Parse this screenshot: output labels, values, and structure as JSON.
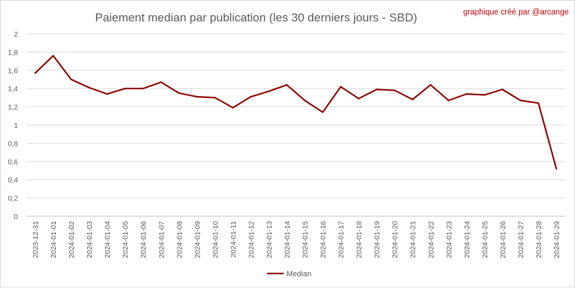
{
  "chart_data": {
    "type": "line",
    "title": "Paiement median par publication (les 30 derniers jours - SBD)",
    "credit": "graphique créé par @arcange",
    "xlabel": "",
    "ylabel": "",
    "ylim": [
      0,
      2
    ],
    "y_ticks": [
      "0",
      "0,2",
      "0,4",
      "0,6",
      "0,8",
      "1",
      "1,2",
      "1,4",
      "1,6",
      "1,8",
      "2"
    ],
    "grid": true,
    "legend_position": "bottom",
    "colors": {
      "series": "#8b0000",
      "grid": "#d9d9d9",
      "axis": "#bfbfbf"
    },
    "categories": [
      "2023-12-31",
      "2024-01-01",
      "2024-01-02",
      "2024-01-03",
      "2024-01-04",
      "2024-01-05",
      "2024-01-06",
      "2024-01-07",
      "2024-01-08",
      "2024-01-09",
      "2024-01-10",
      "2024-01-11",
      "2024-01-12",
      "2024-01-13",
      "2024-01-14",
      "2024-01-15",
      "2024-01-16",
      "2024-01-17",
      "2024-01-18",
      "2024-01-19",
      "2024-01-20",
      "2024-01-21",
      "2024-01-22",
      "2024-01-23",
      "2024-01-24",
      "2024-01-25",
      "2024-01-26",
      "2024-01-27",
      "2024-01-28",
      "2024-01-29"
    ],
    "series": [
      {
        "name": "Median",
        "values": [
          1.57,
          1.76,
          1.5,
          1.41,
          1.34,
          1.4,
          1.4,
          1.47,
          1.35,
          1.31,
          1.3,
          1.19,
          1.31,
          1.37,
          1.44,
          1.27,
          1.14,
          1.42,
          1.29,
          1.39,
          1.38,
          1.28,
          1.44,
          1.27,
          1.34,
          1.33,
          1.39,
          1.27,
          1.24,
          0.52
        ]
      }
    ]
  }
}
